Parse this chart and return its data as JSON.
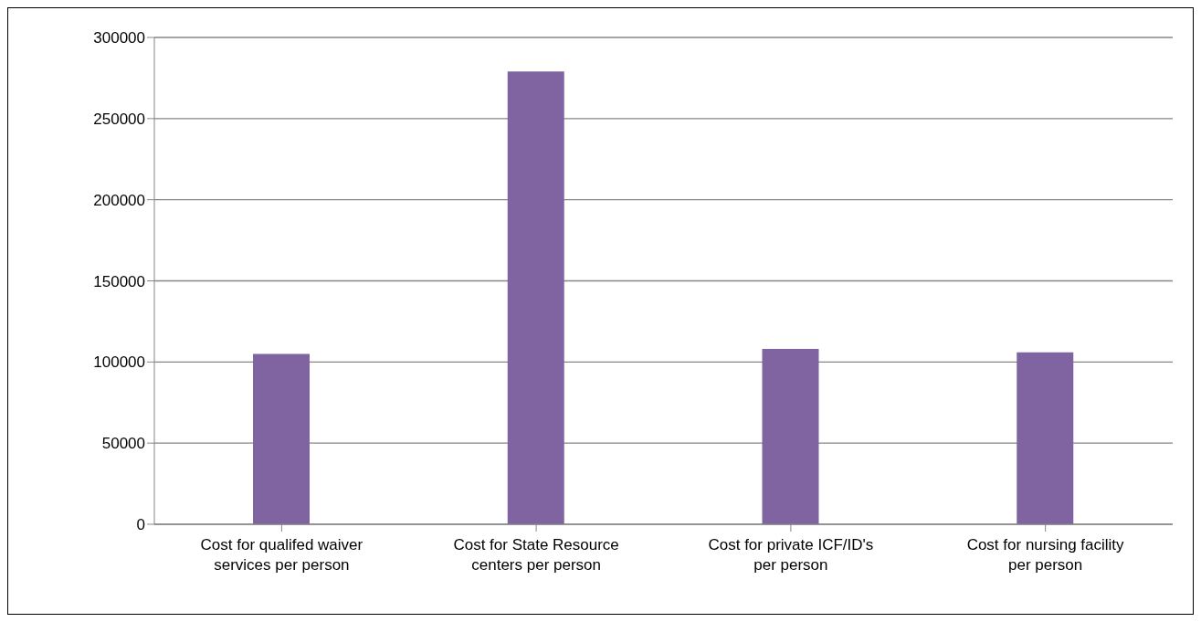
{
  "chart_data": {
    "type": "bar",
    "categories": [
      "Cost for qualifed waiver services per person",
      "Cost for State Resource centers per person",
      "Cost for private ICF/ID's per person",
      "Cost for nursing facility per person"
    ],
    "series": [
      {
        "color": "#8064a2",
        "values": [
          105000,
          279000,
          108000,
          106000
        ]
      }
    ],
    "ylim": [
      0,
      300000
    ],
    "yticks": [
      0,
      50000,
      100000,
      150000,
      200000,
      250000,
      300000
    ],
    "grid": "y",
    "legend": false
  }
}
